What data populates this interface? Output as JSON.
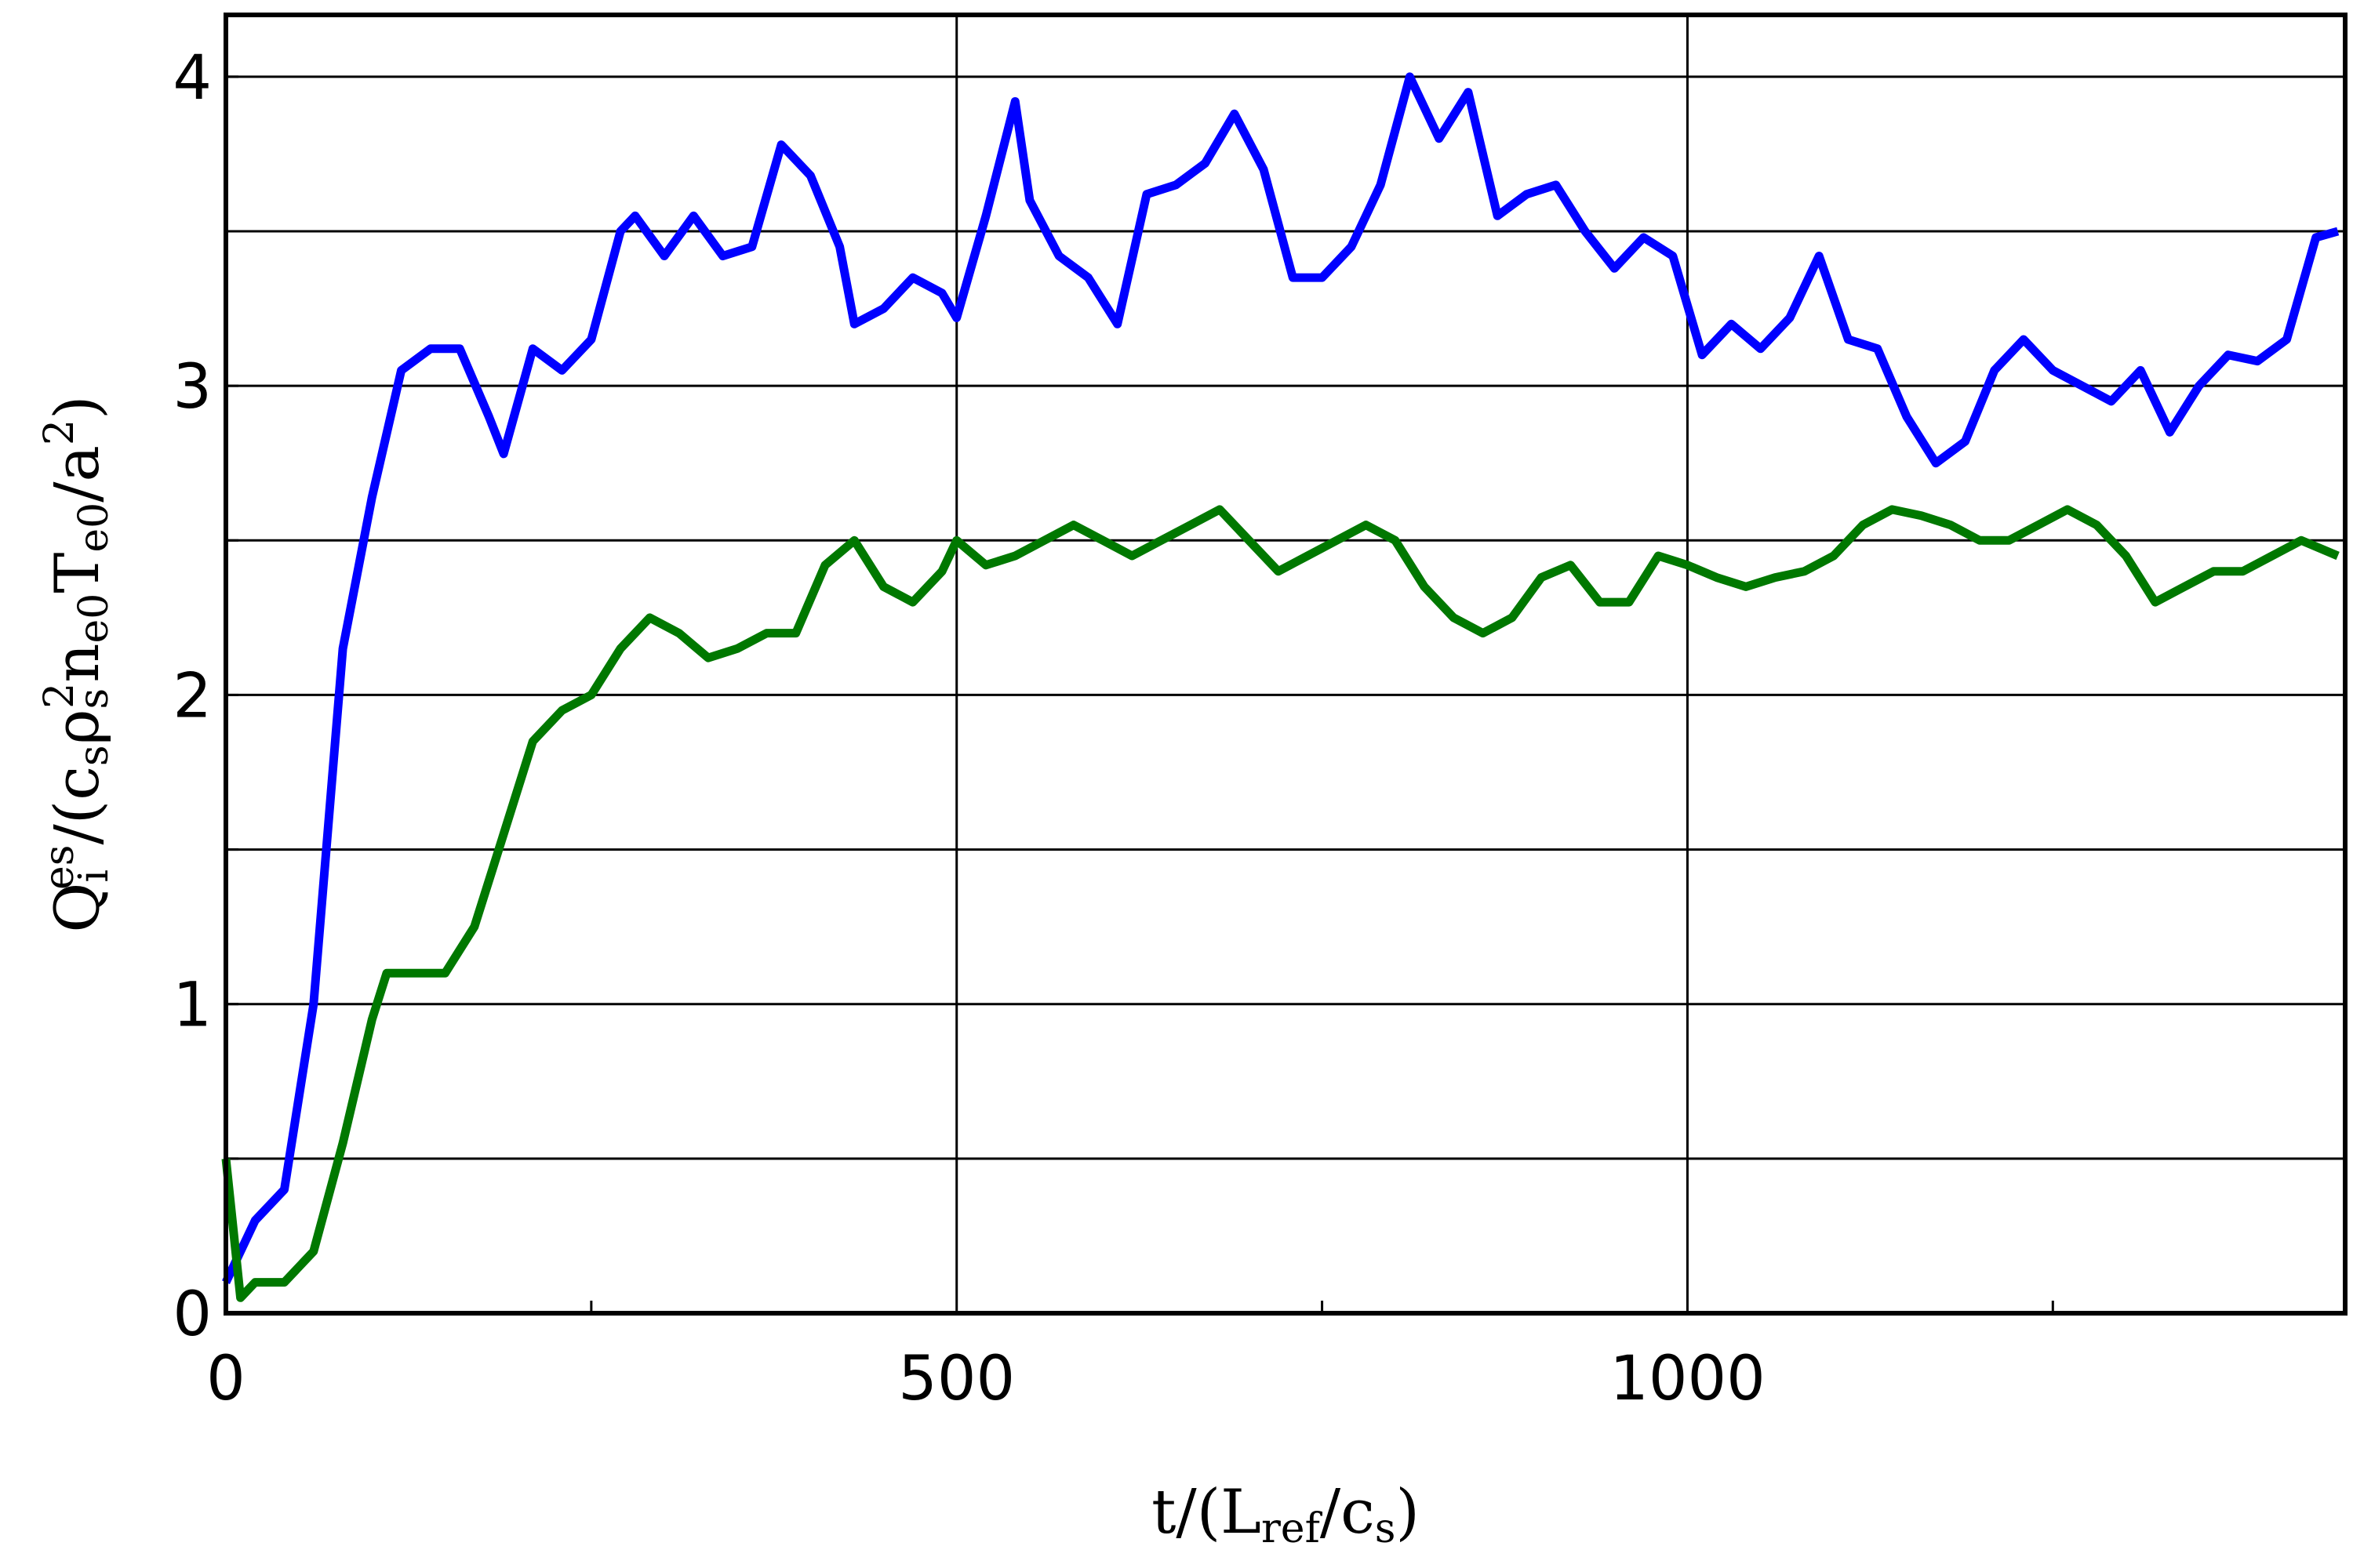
{
  "chart_data": {
    "type": "line",
    "xlabel": [
      "t/(L",
      "ref",
      "/c",
      "s",
      ")"
    ],
    "ylabel": [
      "Q",
      "i",
      "es",
      "/(c",
      "s",
      "ρ",
      "s",
      "2",
      "n",
      "e0",
      "T",
      "e0",
      "/a",
      "2",
      ")"
    ],
    "xlim": [
      0,
      1450
    ],
    "xticks": [
      0,
      500,
      1000
    ],
    "xminor": [
      250,
      750,
      1250
    ],
    "ylim": [
      0,
      4.2
    ],
    "yticks": [
      0,
      1,
      2,
      3,
      4
    ],
    "yminor": [
      0.5,
      1.5,
      2.5,
      3.5
    ],
    "grid": true,
    "series": [
      {
        "color": "#0000ff",
        "x": [
          0,
          20,
          40,
          60,
          80,
          100,
          120,
          140,
          160,
          180,
          190,
          200,
          210,
          230,
          250,
          270,
          280,
          300,
          320,
          340,
          360,
          380,
          400,
          420,
          430,
          450,
          470,
          490,
          500,
          520,
          540,
          550,
          570,
          590,
          610,
          630,
          650,
          670,
          690,
          710,
          730,
          750,
          770,
          790,
          810,
          830,
          850,
          870,
          890,
          910,
          930,
          950,
          970,
          990,
          1010,
          1030,
          1050,
          1070,
          1090,
          1110,
          1130,
          1150,
          1170,
          1190,
          1210,
          1230,
          1250,
          1270,
          1290,
          1310,
          1330,
          1350,
          1370,
          1390,
          1410,
          1430,
          1445
        ],
        "values": [
          0.1,
          0.3,
          0.4,
          1.0,
          2.15,
          2.64,
          3.05,
          3.12,
          3.12,
          2.9,
          2.78,
          2.95,
          3.12,
          3.05,
          3.15,
          3.5,
          3.55,
          3.42,
          3.55,
          3.42,
          3.45,
          3.78,
          3.68,
          3.45,
          3.2,
          3.25,
          3.35,
          3.3,
          3.22,
          3.55,
          3.92,
          3.6,
          3.42,
          3.35,
          3.2,
          3.62,
          3.65,
          3.72,
          3.88,
          3.7,
          3.35,
          3.35,
          3.45,
          3.65,
          4.0,
          3.8,
          3.95,
          3.55,
          3.62,
          3.65,
          3.5,
          3.38,
          3.48,
          3.42,
          3.1,
          3.2,
          3.12,
          3.22,
          3.42,
          3.15,
          3.12,
          2.9,
          2.75,
          2.82,
          3.05,
          3.15,
          3.05,
          3.0,
          2.95,
          3.05,
          2.85,
          3.0,
          3.1,
          3.08,
          3.15,
          3.48,
          3.5
        ]
      },
      {
        "color": "#007800",
        "x": [
          0,
          10,
          20,
          40,
          60,
          80,
          100,
          110,
          130,
          150,
          170,
          190,
          210,
          230,
          250,
          270,
          290,
          310,
          330,
          350,
          370,
          390,
          410,
          430,
          450,
          470,
          490,
          500,
          520,
          540,
          560,
          580,
          600,
          620,
          640,
          660,
          680,
          700,
          720,
          740,
          760,
          780,
          800,
          820,
          840,
          860,
          880,
          900,
          920,
          940,
          960,
          980,
          1000,
          1020,
          1040,
          1060,
          1080,
          1100,
          1120,
          1140,
          1160,
          1180,
          1200,
          1220,
          1240,
          1260,
          1280,
          1300,
          1320,
          1340,
          1360,
          1380,
          1400,
          1420,
          1445
        ],
        "values": [
          0.5,
          0.05,
          0.1,
          0.1,
          0.2,
          0.55,
          0.95,
          1.1,
          1.1,
          1.1,
          1.25,
          1.55,
          1.85,
          1.95,
          2.0,
          2.15,
          2.25,
          2.2,
          2.12,
          2.15,
          2.2,
          2.2,
          2.42,
          2.5,
          2.35,
          2.3,
          2.4,
          2.5,
          2.42,
          2.45,
          2.5,
          2.55,
          2.5,
          2.45,
          2.5,
          2.55,
          2.6,
          2.5,
          2.4,
          2.45,
          2.5,
          2.55,
          2.5,
          2.35,
          2.25,
          2.2,
          2.25,
          2.38,
          2.42,
          2.3,
          2.3,
          2.45,
          2.42,
          2.38,
          2.35,
          2.38,
          2.4,
          2.45,
          2.55,
          2.6,
          2.58,
          2.55,
          2.5,
          2.5,
          2.55,
          2.6,
          2.55,
          2.45,
          2.3,
          2.35,
          2.4,
          2.4,
          2.45,
          2.5,
          2.45
        ]
      }
    ]
  }
}
